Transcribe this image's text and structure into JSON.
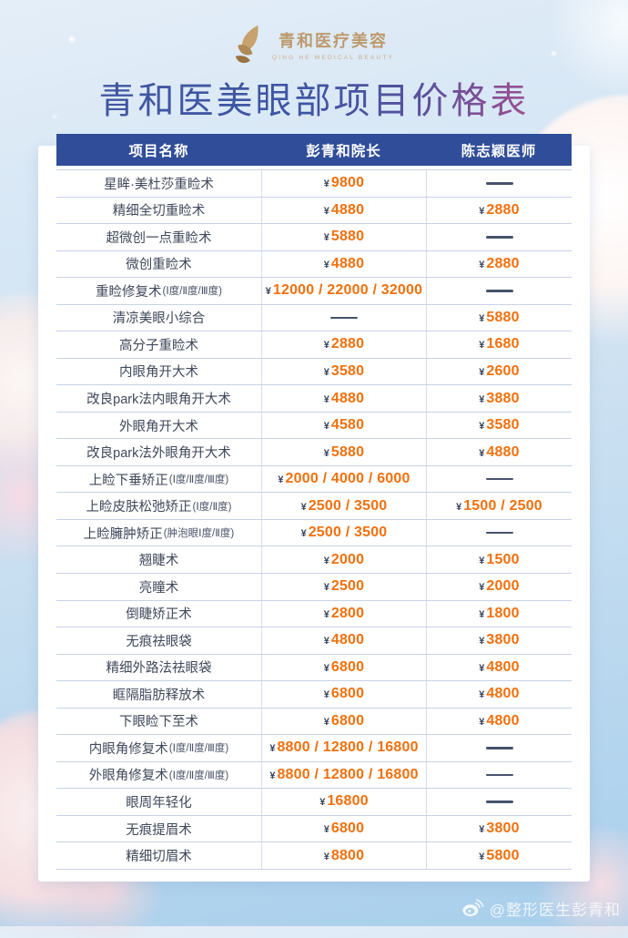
{
  "logo": {
    "brand": "青和医疗美容",
    "subtitle": "QING HE MEDICAL BEAUTY",
    "icon": "gold-leaves-logo"
  },
  "title": "青和医美眼部项目价格表",
  "table": {
    "headers": [
      "项目名称",
      "彭青和院长",
      "陈志颖医师"
    ],
    "rows": [
      {
        "name": "星眸·美杜莎重睑术",
        "peng": "¥9800",
        "chen": "——"
      },
      {
        "name": "精细全切重睑术",
        "peng": "¥4880",
        "chen": "¥2880"
      },
      {
        "name": "超微创一点重睑术",
        "peng": "¥5880",
        "chen": "——"
      },
      {
        "name": "微创重睑术",
        "peng": "¥4880",
        "chen": "¥2880"
      },
      {
        "name": "重睑修复术(Ⅰ度/Ⅱ度/Ⅲ度)",
        "peng": "¥12000/22000/32000",
        "chen": "——"
      },
      {
        "name": "清凉美眼小综合",
        "peng": "——",
        "chen": "¥5880"
      },
      {
        "name": "高分子重睑术",
        "peng": "¥2880",
        "chen": "¥1680"
      },
      {
        "name": "内眼角开大术",
        "peng": "¥3580",
        "chen": "¥2600"
      },
      {
        "name": "改良park法内眼角开大术",
        "peng": "¥4880",
        "chen": "¥3880"
      },
      {
        "name": "外眼角开大术",
        "peng": "¥4580",
        "chen": "¥3580"
      },
      {
        "name": "改良park法外眼角开大术",
        "peng": "¥5880",
        "chen": "¥4880"
      },
      {
        "name": "上睑下垂矫正(Ⅰ度/Ⅱ度/Ⅲ度)",
        "peng": "¥2000/4000/6000",
        "chen": "——"
      },
      {
        "name": "上睑皮肤松弛矫正(Ⅰ度/Ⅱ度)",
        "peng": "¥2500/3500",
        "chen": "¥1500/2500"
      },
      {
        "name": "上睑臃肿矫正(肿泡眼Ⅰ度/Ⅱ度)",
        "peng": "¥2500/3500",
        "chen": "——"
      },
      {
        "name": "翘睫术",
        "peng": "¥2000",
        "chen": "¥1500"
      },
      {
        "name": "亮瞳术",
        "peng": "¥2500",
        "chen": "¥2000"
      },
      {
        "name": "倒睫矫正术",
        "peng": "¥2800",
        "chen": "¥1800"
      },
      {
        "name": "无痕祛眼袋",
        "peng": "¥4800",
        "chen": "¥3800"
      },
      {
        "name": "精细外路法祛眼袋",
        "peng": "¥6800",
        "chen": "¥4800"
      },
      {
        "name": "眶隔脂肪释放术",
        "peng": "¥6800",
        "chen": "¥4800"
      },
      {
        "name": "下眼睑下至术",
        "peng": "¥6800",
        "chen": "¥4800"
      },
      {
        "name": "内眼角修复术(Ⅰ度/Ⅱ度/Ⅲ度)",
        "peng": "¥8800/12800/16800",
        "chen": "——"
      },
      {
        "name": "外眼角修复术(Ⅰ度/Ⅱ度/Ⅲ度)",
        "peng": "¥8800/12800/16800",
        "chen": "——"
      },
      {
        "name": "眼周年轻化",
        "peng": "¥16800",
        "chen": "——"
      },
      {
        "name": "无痕提眉术",
        "peng": "¥6800",
        "chen": "¥3800"
      },
      {
        "name": "精细切眉术",
        "peng": "¥8800",
        "chen": "¥5800"
      }
    ]
  },
  "footer": {
    "watermark": "@整形医生彭青和",
    "icon": "weibo-logo"
  },
  "colors": {
    "header_bg": "#2f4d99",
    "price_orange": "#f2700d",
    "dash_navy": "#45536b",
    "logo_gold": "#bd9a6d",
    "background_blue": "#a8cfec"
  }
}
